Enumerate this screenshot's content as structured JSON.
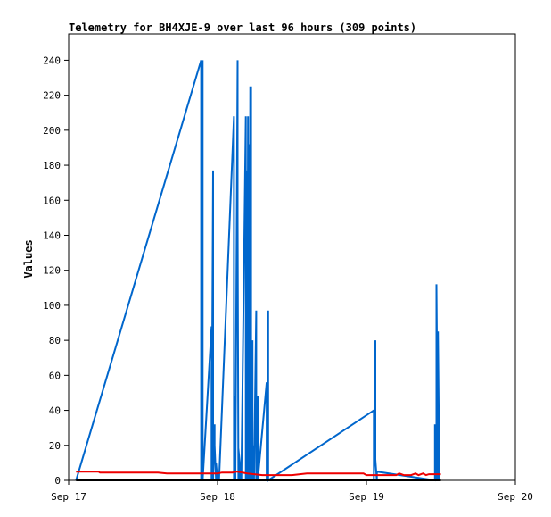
{
  "chart_data": {
    "type": "line",
    "title": "Telemetry for BH4XJE-9 over last 96 hours (309 points)",
    "xlabel": "",
    "ylabel": "Values",
    "xlim": [
      "Sep 17",
      "Sep 20"
    ],
    "ylim": [
      0,
      255
    ],
    "x_ticks": [
      "Sep 17",
      "Sep 18",
      "Sep 19",
      "Sep 20"
    ],
    "y_ticks": [
      0,
      20,
      40,
      60,
      80,
      100,
      120,
      140,
      160,
      180,
      200,
      220,
      240
    ],
    "grid": false,
    "legend": "none",
    "series": [
      {
        "color": "#0066cc",
        "x_days": [
          0.05,
          0.89,
          0.89,
          0.9,
          0.9,
          0.96,
          0.96,
          0.97,
          0.97,
          0.98,
          0.98,
          0.99,
          0.99,
          1.0,
          1.0,
          1.01,
          1.01,
          1.11,
          1.11,
          1.12,
          1.12,
          1.135,
          1.135,
          1.14,
          1.14,
          1.15,
          1.15,
          1.16,
          1.16,
          1.19,
          1.19,
          1.2,
          1.2,
          1.205,
          1.205,
          1.21,
          1.21,
          1.215,
          1.215,
          1.22,
          1.22,
          1.225,
          1.225,
          1.23,
          1.23,
          1.235,
          1.235,
          1.24,
          1.24,
          1.245,
          1.245,
          1.26,
          1.26,
          1.27,
          1.27,
          1.33,
          1.33,
          1.34,
          1.34,
          2.05,
          2.05,
          2.06,
          2.06,
          2.07,
          2.07,
          2.46,
          2.46,
          2.47,
          2.47,
          2.48,
          2.48,
          2.49,
          2.49
        ],
        "values": [
          0,
          240,
          0,
          240,
          0,
          88,
          0,
          177,
          0,
          32,
          20,
          0,
          10,
          0,
          6,
          0,
          0,
          208,
          0,
          48,
          0,
          240,
          152,
          0,
          18,
          10,
          0,
          5,
          0,
          208,
          0,
          177,
          0,
          208,
          0,
          192,
          0,
          65,
          0,
          225,
          0,
          225,
          0,
          48,
          0,
          80,
          0,
          20,
          0,
          10,
          0,
          97,
          0,
          48,
          0,
          56,
          0,
          97,
          0,
          40,
          0,
          80,
          12,
          0,
          5,
          0,
          32,
          0,
          112,
          0,
          85,
          0,
          28
        ]
      },
      {
        "color": "#ee0000",
        "x_days": [
          0.05,
          0.1,
          0.2,
          0.21,
          0.3,
          0.4,
          0.5,
          0.6,
          0.66,
          0.7,
          0.8,
          0.9,
          1.0,
          1.03,
          1.1,
          1.13,
          1.2,
          1.3,
          1.4,
          1.5,
          1.6,
          1.7,
          1.8,
          1.9,
          1.98,
          2.0,
          2.1,
          2.2,
          2.22,
          2.25,
          2.3,
          2.33,
          2.35,
          2.38,
          2.4,
          2.42,
          2.45,
          2.5
        ],
        "values": [
          5,
          5,
          5,
          4.5,
          4.5,
          4.5,
          4.5,
          4.5,
          4,
          4,
          4,
          4,
          4,
          4.5,
          4.5,
          5,
          4,
          3,
          3,
          3,
          4,
          4,
          4,
          4,
          4,
          3,
          3,
          3,
          4,
          3,
          3,
          4,
          3,
          4,
          3,
          3.5,
          3.5,
          3.5
        ]
      },
      {
        "color": "#000000",
        "x_days": [
          0.05,
          2.5
        ],
        "values": [
          0,
          0
        ]
      }
    ]
  }
}
